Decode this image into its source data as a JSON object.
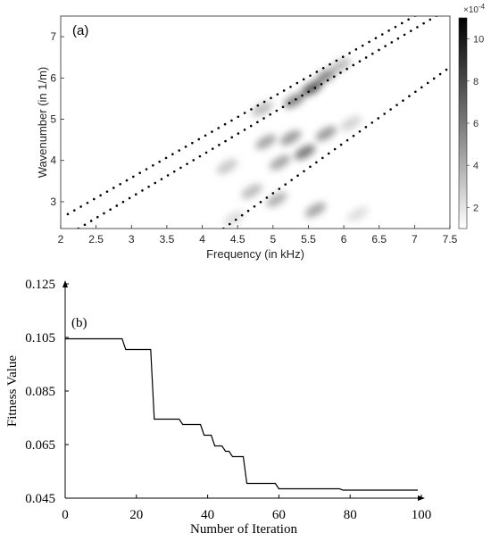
{
  "chart_data": [
    {
      "type": "heatmap",
      "panel_label": "(a)",
      "xlabel": "Frequency (in kHz)",
      "ylabel": "Wavenumber (in 1/m)",
      "xlim": [
        2,
        7.5
      ],
      "ylim": [
        2.35,
        7.5
      ],
      "xticks": [
        2,
        2.5,
        3,
        3.5,
        4,
        4.5,
        5,
        5.5,
        6,
        6.5,
        7,
        7.5
      ],
      "yticks": [
        3,
        4,
        5,
        6,
        7
      ],
      "grid": false,
      "colormap": "white-to-black",
      "colorbar": {
        "range": [
          1.0,
          11.0
        ],
        "ticks": [
          2,
          4,
          6,
          8,
          10
        ],
        "exponent_label": "×10",
        "exponent_power": "-4"
      },
      "dotted_dispersion_curves": [
        {
          "points": [
            [
              2.1,
              2.7
            ],
            [
              7.1,
              7.6
            ]
          ]
        },
        {
          "points": [
            [
              2.25,
              2.35
            ],
            [
              7.4,
              7.6
            ]
          ]
        },
        {
          "points": [
            [
              4.3,
              2.35
            ],
            [
              7.45,
              6.2
            ]
          ]
        }
      ],
      "intensity_blobs": [
        {
          "x": 4.35,
          "y": 3.85,
          "intensity": 0.25
        },
        {
          "x": 4.45,
          "y": 2.6,
          "intensity": 0.15
        },
        {
          "x": 4.7,
          "y": 3.25,
          "intensity": 0.3
        },
        {
          "x": 4.9,
          "y": 4.45,
          "intensity": 0.4
        },
        {
          "x": 4.85,
          "y": 5.25,
          "intensity": 0.3
        },
        {
          "x": 5.05,
          "y": 3.05,
          "intensity": 0.35
        },
        {
          "x": 5.1,
          "y": 3.95,
          "intensity": 0.4
        },
        {
          "x": 5.25,
          "y": 4.55,
          "intensity": 0.45
        },
        {
          "x": 5.3,
          "y": 5.45,
          "intensity": 0.55
        },
        {
          "x": 5.45,
          "y": 4.2,
          "intensity": 0.6
        },
        {
          "x": 5.55,
          "y": 5.75,
          "intensity": 0.75
        },
        {
          "x": 5.6,
          "y": 2.8,
          "intensity": 0.4
        },
        {
          "x": 5.75,
          "y": 4.65,
          "intensity": 0.45
        },
        {
          "x": 5.75,
          "y": 6.05,
          "intensity": 0.55
        },
        {
          "x": 5.95,
          "y": 6.3,
          "intensity": 0.3
        },
        {
          "x": 6.1,
          "y": 4.9,
          "intensity": 0.2
        },
        {
          "x": 6.2,
          "y": 2.7,
          "intensity": 0.15
        }
      ]
    },
    {
      "type": "line",
      "panel_label": "(b)",
      "xlabel": "Number of Iteration",
      "ylabel": "Fitness Value",
      "xlim": [
        0,
        100
      ],
      "ylim": [
        0.045,
        0.125
      ],
      "xticks": [
        0,
        20,
        40,
        60,
        80,
        100
      ],
      "yticks": [
        "0.045",
        "0.065",
        "0.085",
        "0.105",
        "0.125"
      ],
      "grid": false,
      "series": [
        {
          "step": true,
          "x": [
            0,
            16,
            17,
            24,
            25,
            32,
            33,
            38,
            39,
            41,
            42,
            44,
            45,
            46,
            47,
            50,
            51,
            59,
            60,
            77,
            78,
            99
          ],
          "y": [
            0.1045,
            0.1045,
            0.1005,
            0.1005,
            0.0745,
            0.0745,
            0.0725,
            0.0725,
            0.0685,
            0.0685,
            0.0645,
            0.0645,
            0.0625,
            0.0625,
            0.0605,
            0.0605,
            0.0505,
            0.0505,
            0.0485,
            0.0485,
            0.048,
            0.048
          ]
        }
      ]
    }
  ]
}
